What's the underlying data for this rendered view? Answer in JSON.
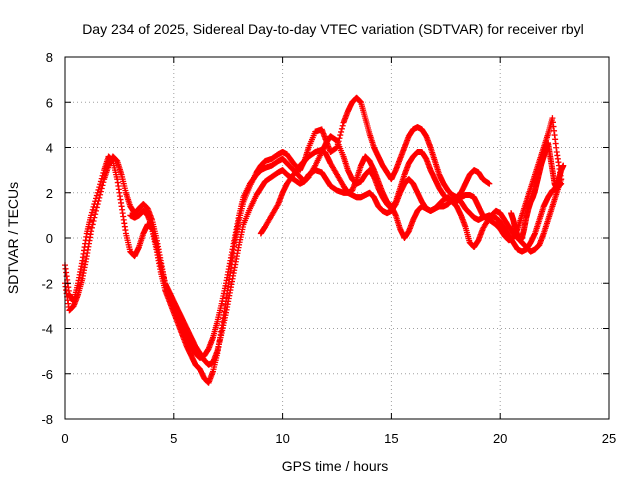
{
  "chart_data": {
    "type": "scatter",
    "title": "Day 234 of 2025, Sidereal Day-to-day VTEC variation (SDTVAR) for receiver rbyl",
    "xlabel": "GPS time / hours",
    "ylabel": "SDTVAR / TECUs",
    "xlim": [
      0,
      25
    ],
    "ylim": [
      -8,
      8
    ],
    "xticks": [
      "0",
      "5",
      "10",
      "15",
      "20",
      "25"
    ],
    "yticks": [
      "-8",
      "-6",
      "-4",
      "-2",
      "0",
      "2",
      "4",
      "6",
      "8"
    ],
    "grid": true,
    "marker": "plus",
    "color": "#ff0000",
    "series": [
      {
        "x": [
          0.0,
          0.2,
          0.4,
          0.6,
          0.8,
          1.0,
          1.2,
          1.5,
          1.8,
          2.0,
          2.2,
          2.4,
          2.6,
          2.8,
          3.0,
          3.2,
          3.4,
          3.6,
          3.8,
          4.0,
          4.2,
          4.4,
          4.6,
          4.8,
          5.0,
          5.2,
          5.4,
          5.6,
          5.8,
          6.0,
          6.2,
          6.4,
          6.6,
          6.8,
          7.0,
          7.2,
          7.4,
          7.6,
          7.8,
          8.0,
          8.2,
          8.5,
          8.8,
          9.0,
          9.2,
          9.5,
          9.8,
          10.0,
          10.2,
          10.5,
          10.8,
          11.0,
          11.2,
          11.5,
          11.8,
          12.0,
          12.2,
          12.5,
          12.8,
          13.0,
          13.2,
          13.4,
          13.6,
          13.8,
          14.0,
          14.2,
          14.4,
          14.6,
          14.8,
          15.0,
          15.2,
          15.4,
          15.6,
          15.8,
          16.0,
          16.2,
          16.4,
          16.6,
          16.8,
          17.0,
          17.2,
          17.4,
          17.6,
          17.8,
          18.0,
          18.2,
          18.4,
          18.6,
          18.8,
          19.0,
          19.2,
          19.5
        ],
        "y": [
          -1.2,
          -2.5,
          -2.8,
          -2.0,
          -1.0,
          0.2,
          1.0,
          2.0,
          3.0,
          3.6,
          3.4,
          2.6,
          1.4,
          0.2,
          -0.6,
          -0.8,
          -0.4,
          0.2,
          0.6,
          0.4,
          -0.5,
          -1.5,
          -2.3,
          -2.8,
          -3.3,
          -3.8,
          -4.3,
          -4.8,
          -5.2,
          -5.6,
          -5.8,
          -6.2,
          -6.4,
          -5.9,
          -5.1,
          -4.0,
          -2.8,
          -1.5,
          -0.2,
          0.8,
          1.6,
          2.3,
          2.9,
          3.2,
          3.4,
          3.5,
          3.7,
          3.8,
          3.7,
          3.3,
          3.0,
          3.4,
          4.0,
          4.7,
          4.8,
          4.3,
          3.8,
          4.0,
          5.1,
          5.6,
          6.0,
          6.2,
          6.0,
          5.3,
          4.6,
          4.0,
          3.6,
          3.2,
          2.9,
          2.6,
          3.0,
          3.5,
          4.0,
          4.5,
          4.8,
          4.9,
          4.8,
          4.5,
          4.0,
          3.4,
          2.8,
          2.4,
          2.1,
          1.9,
          1.8,
          2.0,
          2.4,
          2.8,
          3.0,
          2.9,
          2.6,
          2.4
        ]
      },
      {
        "x": [
          0.0,
          0.2,
          0.4,
          0.6,
          0.8,
          1.0,
          1.2,
          1.5,
          1.8,
          2.0,
          2.2,
          2.4,
          2.6,
          2.8,
          3.0,
          3.2,
          3.4,
          3.6,
          3.8,
          4.0,
          4.2,
          4.4,
          4.6,
          4.8,
          5.0,
          5.2,
          5.4,
          5.6,
          5.8,
          6.0,
          6.2,
          6.4,
          6.6,
          6.8,
          7.0,
          7.2,
          7.4,
          7.6,
          7.8,
          8.0,
          8.2,
          8.5,
          8.8,
          9.0,
          9.2,
          9.5,
          9.8,
          10.0,
          10.2,
          10.5,
          10.8,
          11.0,
          11.2,
          11.5,
          11.8,
          12.0,
          12.2,
          12.5,
          12.8,
          13.0,
          13.2,
          13.4,
          13.6,
          13.8,
          14.0,
          14.2,
          14.4,
          14.6,
          14.8,
          15.0,
          15.2,
          15.4,
          15.6,
          15.8,
          16.0,
          16.2,
          16.4,
          16.6,
          16.8,
          17.0,
          17.2,
          17.4,
          17.6,
          17.8,
          18.0,
          18.2,
          18.4,
          18.6,
          18.8,
          19.0,
          19.2,
          19.5,
          19.8,
          20.0,
          20.2,
          20.4,
          20.6,
          20.8,
          21.0,
          21.2,
          21.4,
          21.6,
          21.8,
          22.0,
          22.2,
          22.4,
          22.6,
          22.8
        ],
        "y": [
          -2.0,
          -3.2,
          -3.0,
          -2.5,
          -1.8,
          -0.8,
          0.3,
          1.5,
          2.6,
          3.2,
          3.6,
          3.4,
          2.8,
          2.0,
          1.4,
          1.1,
          1.3,
          1.5,
          1.3,
          0.8,
          0.0,
          -1.0,
          -2.0,
          -2.6,
          -3.0,
          -3.5,
          -4.0,
          -4.4,
          -4.8,
          -5.1,
          -5.3,
          -5.2,
          -4.9,
          -4.4,
          -3.7,
          -2.9,
          -2.0,
          -1.0,
          0.0,
          1.0,
          1.8,
          2.4,
          2.8,
          3.0,
          3.1,
          3.2,
          3.4,
          3.5,
          3.3,
          3.0,
          2.7,
          2.5,
          2.7,
          3.2,
          3.8,
          4.2,
          4.5,
          4.3,
          3.6,
          3.0,
          2.6,
          2.4,
          2.5,
          2.8,
          3.0,
          2.7,
          2.2,
          1.8,
          1.5,
          1.3,
          1.6,
          2.2,
          2.8,
          3.3,
          3.6,
          3.8,
          3.8,
          3.5,
          3.0,
          2.6,
          2.2,
          1.9,
          1.7,
          1.6,
          1.6,
          1.8,
          1.9,
          1.9,
          1.8,
          1.4,
          1.0,
          0.8,
          0.6,
          0.4,
          0.1,
          -0.1,
          0.0,
          0.4,
          1.0,
          1.6,
          2.2,
          2.8,
          3.4,
          4.0,
          4.6,
          5.3,
          3.8,
          2.6
        ]
      },
      {
        "x": [
          3.0,
          3.2,
          3.4,
          3.6,
          3.8,
          4.0,
          4.2,
          4.4,
          4.6,
          4.8,
          5.0,
          5.2,
          5.4,
          5.6,
          5.8,
          6.0,
          6.2,
          6.4,
          6.6,
          6.8,
          7.0,
          7.2,
          7.4,
          7.6,
          7.8,
          8.0,
          8.2,
          8.5,
          8.8,
          9.0,
          9.2,
          9.5,
          9.8,
          10.0,
          10.2,
          10.5,
          10.8,
          11.0,
          11.2,
          11.5,
          11.8,
          12.0,
          12.2,
          12.5,
          12.8,
          13.0,
          13.2,
          13.4,
          13.6,
          13.8,
          14.0,
          14.2,
          14.4,
          14.6,
          14.8,
          15.0,
          15.2,
          15.4,
          15.6,
          15.8,
          16.0,
          16.2,
          16.4,
          16.6,
          16.8,
          17.0,
          17.2,
          17.4,
          17.6,
          17.8,
          18.0,
          18.2,
          18.4,
          18.6,
          18.8,
          19.0,
          19.2,
          19.5,
          19.8,
          20.0,
          20.2,
          20.4,
          20.6,
          20.8,
          21.0,
          21.2,
          21.4,
          21.6,
          21.8,
          22.0,
          22.2,
          22.4,
          22.6,
          22.8
        ],
        "y": [
          1.0,
          0.9,
          1.0,
          1.2,
          1.0,
          0.5,
          -0.3,
          -1.2,
          -2.0,
          -2.4,
          -2.8,
          -3.2,
          -3.6,
          -4.0,
          -4.4,
          -4.8,
          -5.1,
          -5.4,
          -5.6,
          -5.5,
          -5.0,
          -4.2,
          -3.3,
          -2.3,
          -1.3,
          -0.3,
          0.6,
          1.3,
          1.9,
          2.2,
          2.5,
          2.7,
          2.9,
          3.0,
          2.8,
          2.6,
          2.4,
          2.5,
          2.8,
          3.0,
          2.9,
          2.6,
          2.3,
          2.1,
          2.0,
          2.0,
          1.9,
          1.8,
          1.8,
          1.9,
          2.0,
          1.8,
          1.4,
          1.2,
          1.1,
          1.2,
          1.5,
          2.0,
          2.4,
          2.6,
          2.4,
          2.0,
          1.6,
          1.3,
          1.2,
          1.3,
          1.4,
          1.4,
          1.5,
          1.7,
          1.8,
          1.6,
          1.3,
          1.1,
          0.9,
          0.8,
          0.9,
          1.0,
          0.9,
          0.7,
          0.4,
          0.1,
          -0.2,
          -0.5,
          -0.6,
          -0.5,
          -0.2,
          0.2,
          0.8,
          1.4,
          1.8,
          2.1,
          2.2,
          2.4
        ]
      },
      {
        "x": [
          9.0,
          9.2,
          9.5,
          9.8,
          10.0,
          10.2,
          10.5,
          10.8,
          11.0,
          11.2,
          11.5,
          11.8,
          12.0,
          12.2,
          12.5,
          12.8,
          13.0,
          13.2,
          13.4,
          13.6,
          13.8,
          14.0,
          14.2,
          14.4,
          14.6,
          14.8,
          15.0,
          15.2,
          15.4,
          15.6,
          15.8,
          16.0,
          16.2,
          16.4,
          16.6,
          16.8,
          17.0,
          17.2,
          17.4,
          17.6,
          17.8,
          18.0,
          18.2,
          18.4,
          18.6,
          18.8,
          19.0,
          19.2,
          19.5,
          19.8,
          20.0,
          20.2,
          20.4,
          20.6,
          20.8,
          21.0,
          21.2,
          21.4,
          21.6,
          21.8,
          22.0,
          22.2,
          22.4,
          22.6,
          22.8
        ],
        "y": [
          0.2,
          0.5,
          1.0,
          1.5,
          2.0,
          2.4,
          2.8,
          3.2,
          3.4,
          3.6,
          3.8,
          3.9,
          3.7,
          3.3,
          2.8,
          2.3,
          2.0,
          2.1,
          2.6,
          3.2,
          3.6,
          3.4,
          3.0,
          2.5,
          2.0,
          1.6,
          1.4,
          1.0,
          0.4,
          0.0,
          0.3,
          0.8,
          1.2,
          1.4,
          1.3,
          1.2,
          1.3,
          1.5,
          1.7,
          1.8,
          1.6,
          1.4,
          1.0,
          0.5,
          -0.2,
          -0.4,
          -0.1,
          0.4,
          0.9,
          1.2,
          1.1,
          0.8,
          0.5,
          0.2,
          0.0,
          -0.2,
          -0.4,
          -0.6,
          -0.5,
          -0.3,
          0.2,
          0.8,
          1.4,
          2.0,
          2.6
        ]
      },
      {
        "x": [
          20.5,
          20.6,
          20.7,
          20.8,
          20.9,
          21.0,
          21.1,
          21.2,
          21.3,
          21.4,
          21.5,
          21.6,
          21.7,
          21.8,
          21.9,
          22.0,
          22.1,
          22.2,
          22.3,
          22.4,
          22.5,
          22.6,
          22.7,
          22.8,
          22.9
        ],
        "y": [
          1.1,
          0.8,
          0.4,
          0.1,
          -0.1,
          0.0,
          0.4,
          0.9,
          1.3,
          1.6,
          1.8,
          2.1,
          2.5,
          2.9,
          3.3,
          3.6,
          3.9,
          4.2,
          3.6,
          3.0,
          2.4,
          2.2,
          2.6,
          3.0,
          3.2
        ]
      }
    ]
  }
}
